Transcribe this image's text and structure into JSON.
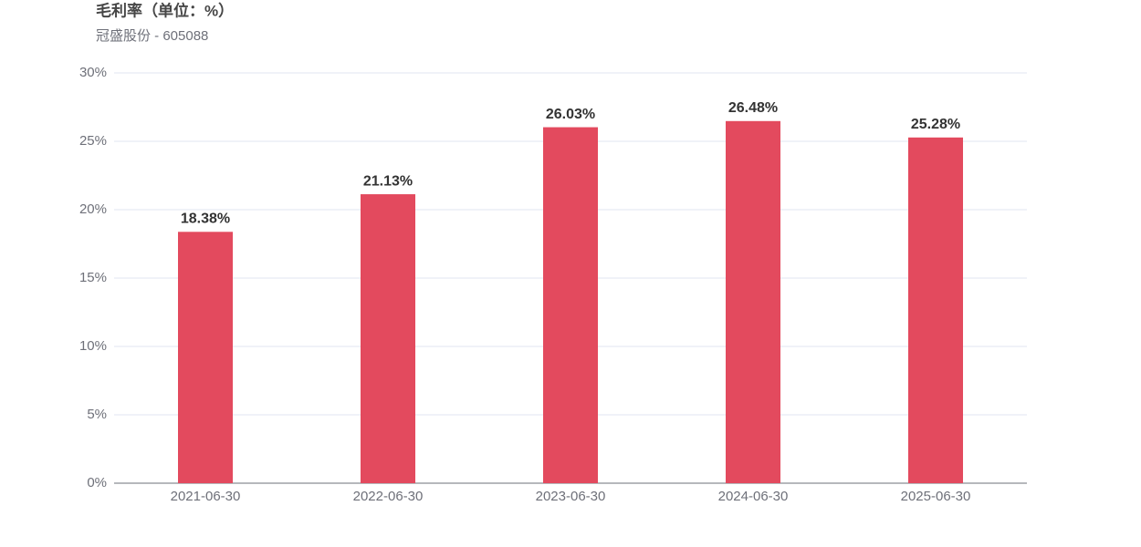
{
  "chart_data": {
    "type": "bar",
    "title": "毛利率（单位：%）",
    "subtitle": "冠盛股份 - 605088",
    "categories": [
      "2021-06-30",
      "2022-06-30",
      "2023-06-30",
      "2024-06-30",
      "2025-06-30"
    ],
    "values": [
      18.38,
      21.13,
      26.03,
      26.48,
      25.28
    ],
    "value_labels": [
      "18.38%",
      "21.13%",
      "26.03%",
      "26.48%",
      "25.28%"
    ],
    "color": "#e34a5e",
    "ylim": [
      0,
      30
    ],
    "yticks": [
      {
        "value": 0,
        "label": "0%"
      },
      {
        "value": 5,
        "label": "5%"
      },
      {
        "value": 10,
        "label": "10%"
      },
      {
        "value": 15,
        "label": "15%"
      },
      {
        "value": 20,
        "label": "20%"
      },
      {
        "value": 25,
        "label": "25%"
      },
      {
        "value": 30,
        "label": "30%"
      }
    ],
    "grid": true
  }
}
